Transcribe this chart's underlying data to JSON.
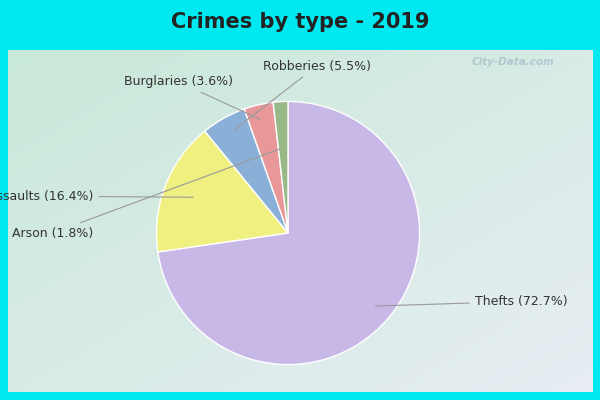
{
  "title": "Crimes by type - 2019",
  "slices": [
    {
      "label": "Thefts",
      "pct": 72.7,
      "color": "#c8b8e8"
    },
    {
      "label": "Assaults",
      "pct": 16.4,
      "color": "#f0f080"
    },
    {
      "label": "Robberies",
      "pct": 5.5,
      "color": "#8ab0d8"
    },
    {
      "label": "Burglaries",
      "pct": 3.6,
      "color": "#e89898"
    },
    {
      "label": "Arson",
      "pct": 1.8,
      "color": "#98b888"
    }
  ],
  "bg_top_color": "#00e8f0",
  "bg_chart_tl": "#c8e8d8",
  "bg_chart_br": "#e8f0f0",
  "title_fontsize": 15,
  "label_fontsize": 9,
  "border_cyan_thickness": 8
}
